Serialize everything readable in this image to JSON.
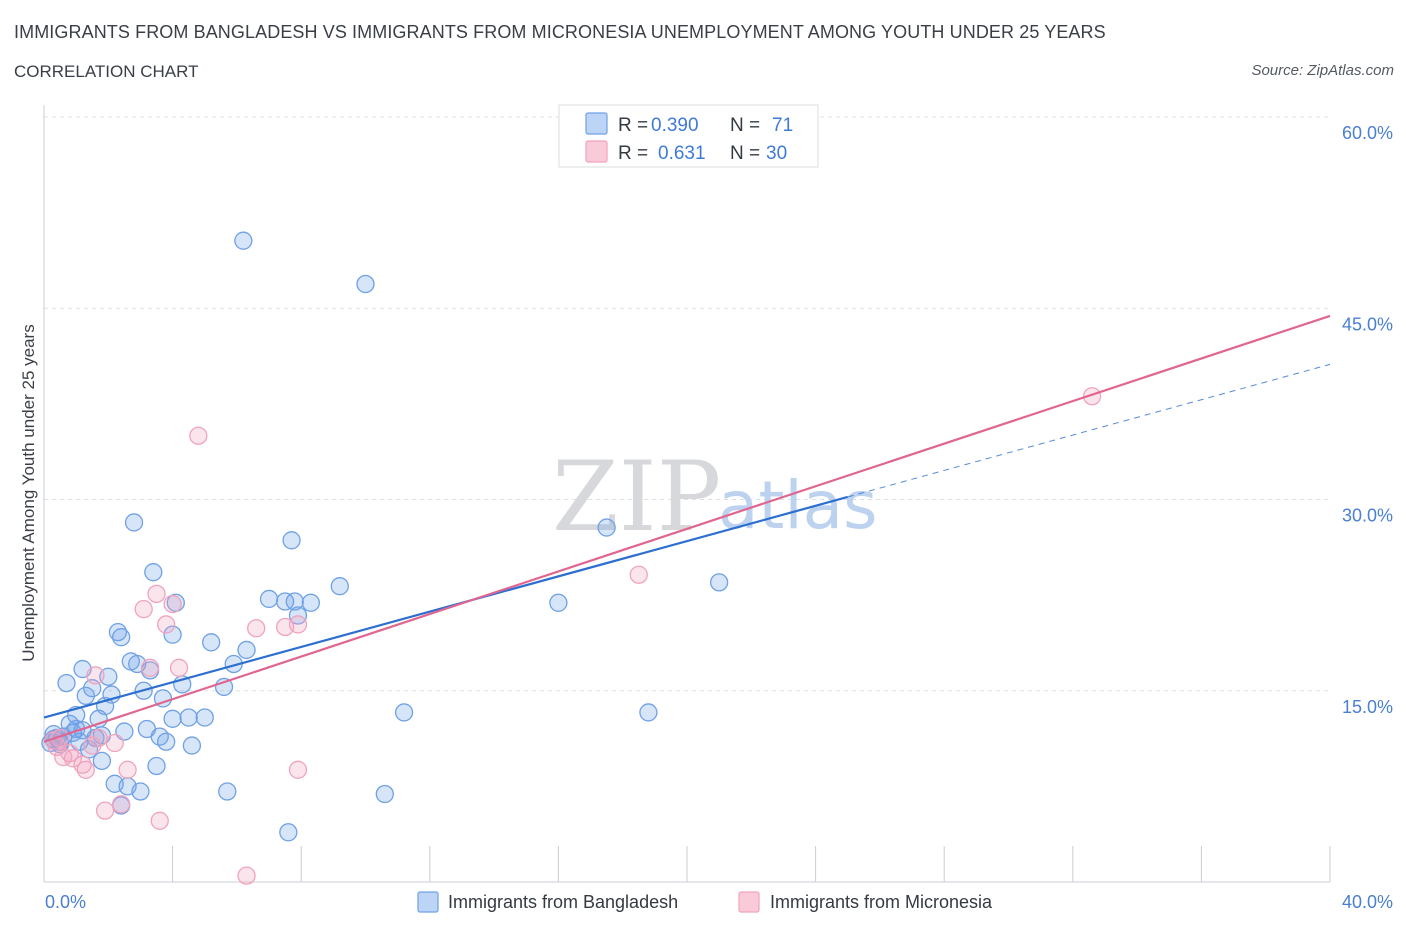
{
  "header": {
    "title": "IMMIGRANTS FROM BANGLADESH VS IMMIGRANTS FROM MICRONESIA UNEMPLOYMENT AMONG YOUTH UNDER 25 YEARS",
    "subtitle": "CORRELATION CHART",
    "source": "Source: ZipAtlas.com"
  },
  "watermark": {
    "zip": "ZIP",
    "atlas": "atlas"
  },
  "colors": {
    "blue": "#6fa1e6",
    "blue_line": "#2d6fd0",
    "pink": "#f0a3bd",
    "pink_line": "#e0668f",
    "tick_label": "#4a7fd1",
    "grid": "#dde1e6"
  },
  "legend_top": {
    "rows": [
      {
        "r_label": "R =",
        "r_value": "0.390",
        "n_label": "N =",
        "n_value": "71",
        "color": "#6fa1e6"
      },
      {
        "r_label": "R =",
        "r_value": "0.631",
        "n_label": "N =",
        "n_value": "30",
        "color": "#f0a3bd"
      }
    ]
  },
  "chart_data": {
    "type": "scatter",
    "title": "IMMIGRANTS FROM BANGLADESH VS IMMIGRANTS FROM MICRONESIA UNEMPLOYMENT AMONG YOUTH UNDER 25 YEARS",
    "xlabel": "",
    "ylabel": "Unemployment Among Youth under 25 years",
    "xlim": [
      0,
      40
    ],
    "ylim": [
      0,
      60
    ],
    "x_ticks": [
      0,
      40
    ],
    "x_tick_labels": [
      "0.0%",
      "40.0%"
    ],
    "y_ticks": [
      15,
      30,
      45,
      60
    ],
    "y_tick_labels": [
      "15.0%",
      "30.0%",
      "45.0%",
      "60.0%"
    ],
    "grid": true,
    "legend_position": "bottom-center",
    "series": [
      {
        "name": "Immigrants from Bangladesh",
        "color": "#6fa1e6",
        "trend": {
          "x": [
            0,
            25
          ],
          "y": [
            12.9,
            30.2
          ],
          "dashed_extension": {
            "x": [
              25,
              40
            ],
            "y": [
              30.2,
              40.6
            ]
          }
        },
        "points": [
          [
            0.2,
            10.9
          ],
          [
            0.3,
            11.6
          ],
          [
            0.4,
            11.3
          ],
          [
            0.5,
            11.0
          ],
          [
            0.6,
            11.4
          ],
          [
            0.7,
            15.6
          ],
          [
            0.8,
            12.4
          ],
          [
            0.9,
            11.7
          ],
          [
            1.0,
            13.1
          ],
          [
            1.1,
            11.0
          ],
          [
            1.2,
            11.9
          ],
          [
            1.2,
            16.7
          ],
          [
            1.3,
            14.6
          ],
          [
            1.4,
            10.4
          ],
          [
            1.5,
            15.2
          ],
          [
            1.6,
            11.3
          ],
          [
            1.7,
            12.8
          ],
          [
            1.8,
            9.5
          ],
          [
            1.8,
            11.5
          ],
          [
            1.9,
            13.8
          ],
          [
            2.0,
            16.1
          ],
          [
            2.1,
            14.7
          ],
          [
            2.2,
            7.7
          ],
          [
            2.3,
            19.6
          ],
          [
            2.4,
            19.2
          ],
          [
            2.4,
            6.0
          ],
          [
            2.6,
            7.5
          ],
          [
            2.7,
            17.3
          ],
          [
            2.8,
            28.2
          ],
          [
            2.9,
            17.1
          ],
          [
            3.0,
            7.1
          ],
          [
            3.1,
            15.0
          ],
          [
            3.2,
            12.0
          ],
          [
            3.3,
            16.6
          ],
          [
            3.4,
            24.3
          ],
          [
            3.5,
            9.1
          ],
          [
            3.6,
            11.4
          ],
          [
            3.7,
            14.4
          ],
          [
            3.8,
            11.0
          ],
          [
            4.0,
            12.8
          ],
          [
            4.0,
            19.4
          ],
          [
            4.1,
            21.9
          ],
          [
            4.3,
            15.5
          ],
          [
            4.5,
            12.9
          ],
          [
            4.6,
            10.7
          ],
          [
            5.0,
            12.9
          ],
          [
            5.2,
            18.8
          ],
          [
            5.6,
            15.3
          ],
          [
            5.7,
            7.1
          ],
          [
            5.9,
            17.1
          ],
          [
            6.2,
            50.3
          ],
          [
            6.3,
            18.2
          ],
          [
            7.0,
            22.2
          ],
          [
            7.5,
            22.0
          ],
          [
            7.6,
            3.9
          ],
          [
            7.7,
            26.8
          ],
          [
            7.8,
            22.0
          ],
          [
            7.9,
            20.9
          ],
          [
            8.3,
            21.9
          ],
          [
            9.2,
            23.2
          ],
          [
            10.0,
            46.9
          ],
          [
            10.6,
            6.9
          ],
          [
            11.2,
            13.3
          ],
          [
            16.0,
            21.9
          ],
          [
            17.5,
            27.8
          ],
          [
            18.8,
            13.3
          ],
          [
            21.0,
            23.5
          ],
          [
            0.3,
            11.2
          ],
          [
            0.5,
            10.8
          ],
          [
            1.0,
            12.0
          ],
          [
            2.5,
            11.8
          ]
        ]
      },
      {
        "name": "Immigrants from Micronesia",
        "color": "#f0a3bd",
        "trend": {
          "x": [
            0,
            40
          ],
          "y": [
            11.0,
            44.4
          ]
        },
        "points": [
          [
            0.3,
            11.1
          ],
          [
            0.4,
            10.6
          ],
          [
            0.5,
            11.3
          ],
          [
            0.6,
            9.8
          ],
          [
            0.8,
            10.1
          ],
          [
            1.2,
            9.2
          ],
          [
            1.3,
            8.8
          ],
          [
            1.5,
            10.7
          ],
          [
            1.6,
            16.2
          ],
          [
            1.7,
            11.3
          ],
          [
            1.9,
            5.6
          ],
          [
            2.2,
            10.9
          ],
          [
            2.4,
            6.1
          ],
          [
            2.6,
            8.8
          ],
          [
            3.1,
            21.4
          ],
          [
            3.3,
            16.8
          ],
          [
            3.5,
            22.6
          ],
          [
            3.6,
            4.8
          ],
          [
            3.8,
            20.2
          ],
          [
            4.0,
            21.8
          ],
          [
            4.2,
            16.8
          ],
          [
            4.8,
            35.0
          ],
          [
            6.3,
            0.5
          ],
          [
            6.6,
            19.9
          ],
          [
            7.5,
            20.0
          ],
          [
            7.9,
            20.2
          ],
          [
            7.9,
            8.8
          ],
          [
            18.5,
            24.1
          ],
          [
            32.6,
            38.1
          ],
          [
            0.9,
            9.7
          ]
        ]
      }
    ]
  },
  "legend_bottom": {
    "items": [
      {
        "label": "Immigrants from Bangladesh",
        "color": "#6fa1e6"
      },
      {
        "label": "Immigrants from Micronesia",
        "color": "#f0a3bd"
      }
    ]
  }
}
